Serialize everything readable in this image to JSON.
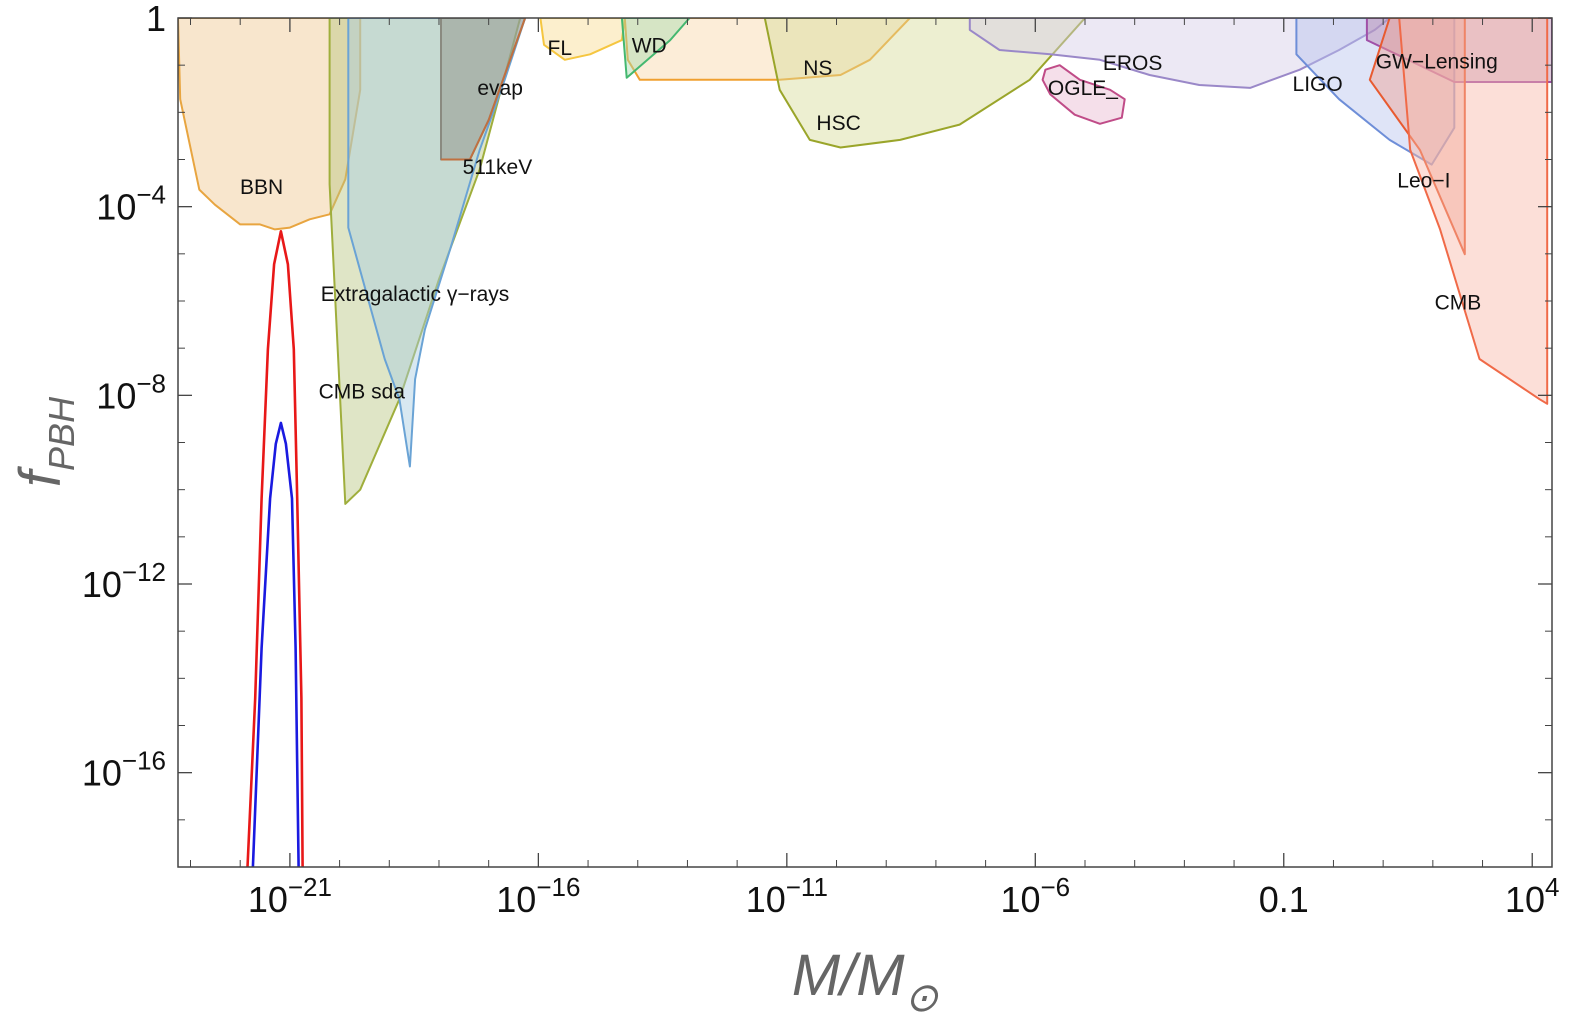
{
  "chart_data": {
    "type": "area",
    "xscale": "log",
    "yscale": "log",
    "x_label": "M/M⊙",
    "y_label": "fPBH",
    "xlim": [
      5.6e-24,
      25000.0
    ],
    "ylim": [
      1e-18,
      1
    ],
    "xticks": [
      {
        "value": 1e-21,
        "label": "10−21"
      },
      {
        "value": 1e-16,
        "label": "10−16"
      },
      {
        "value": 1e-11,
        "label": "10−11"
      },
      {
        "value": 1e-06,
        "label": "10−6"
      },
      0.1,
      {
        "value": 10000.0,
        "label": "104"
      }
    ],
    "xminor": [
      1e-23,
      1e-22,
      1e-20,
      1e-19,
      1e-18,
      1e-17,
      1e-15,
      1e-14,
      1e-13,
      1e-12,
      1e-10,
      1e-09,
      1e-08,
      1e-07,
      1e-05,
      0.0001,
      0.001,
      0.01,
      1,
      10,
      100,
      1000
    ],
    "yticks": [
      {
        "value": 1e-16,
        "label": "10−16"
      },
      {
        "value": 1e-12,
        "label": "10−12"
      },
      {
        "value": 1e-08,
        "label": "10−8"
      },
      {
        "value": 0.0001,
        "label": "10−4"
      },
      1
    ],
    "yminor": [
      1e-17,
      1e-15,
      1e-14,
      1e-13,
      1e-11,
      1e-10,
      1e-09,
      1e-07,
      1e-06,
      1e-05,
      0.001,
      0.01,
      0.1
    ],
    "series": [
      {
        "name": "BBN",
        "color": "#e8a540",
        "fill": "#f0c890",
        "x": [
          5.6e-24,
          6.2e-24,
          1.5e-23,
          3.1e-23,
          1e-22,
          2.5e-22,
          5e-22,
          1e-21,
          2.5e-21,
          6.3e-21,
          1.3e-20,
          2.6e-20,
          2.6e-20
        ],
        "y": [
          1,
          0.019,
          0.00023,
          0.00011,
          4.2e-05,
          4.2e-05,
          3.3e-05,
          3.6e-05,
          5.4e-05,
          6.9e-05,
          0.00038,
          0.03,
          1
        ],
        "label_at": [
          2.7e-22,
          0.00026
        ]
      },
      {
        "name": "CMB sda",
        "color": "#9fae3c",
        "fill": "#b8c680",
        "x": [
          6.3e-21,
          1.3e-20,
          2.6e-20,
          1.6e-19,
          1e-18,
          6.6e-18,
          4.3e-17,
          6.3e-21
        ],
        "y": [
          0.0003,
          5e-11,
          1e-10,
          8.3e-09,
          2.9e-06,
          0.00062,
          1,
          1
        ],
        "label_at": [
          2.8e-20,
          1.2e-08
        ]
      },
      {
        "name": "Extragalactic γ−rays",
        "color": "#6aa3d5",
        "fill": "#a8cde0",
        "x": [
          1.5e-20,
          8.1e-20,
          1.6e-19,
          2.6e-19,
          3.3e-19,
          5.2e-19,
          1.7e-18,
          6.6e-18,
          2.1e-17,
          5.4e-17,
          1.5e-20
        ],
        "y": [
          3.6e-05,
          5.9e-08,
          8.3e-09,
          3.1e-10,
          2.2e-08,
          2.5e-07,
          1.3e-05,
          0.0016,
          0.049,
          1,
          1
        ],
        "label_at": [
          3.3e-19,
          1.4e-06
        ]
      },
      {
        "name": "evap",
        "color": "#8a8a80",
        "fill": "#8a8a80",
        "x": [
          1.1e-18,
          1.1e-18,
          4.2e-18,
          1e-17,
          2.7e-17,
          5.4e-17
        ],
        "y": [
          1,
          0.001,
          0.001,
          0.0069,
          0.13,
          1
        ],
        "label_at": [
          1.7e-17,
          0.033
        ]
      },
      {
        "name": "511keV",
        "color": "#c07040",
        "fill": null,
        "x": [
          1.1e-18,
          4.2e-18,
          1e-17,
          2.7e-17,
          5.4e-17
        ],
        "y": [
          0.001,
          0.001,
          0.0069,
          0.13,
          1
        ],
        "label_at": [
          1.5e-17,
          0.0007
        ]
      },
      {
        "name": "FL",
        "color": "#f5c640",
        "fill": "#f8dc90",
        "x": [
          1.1e-16,
          1.3e-16,
          3.4e-16,
          1.1e-15,
          4.8e-15,
          5.5e-15
        ],
        "y": [
          1,
          0.27,
          0.13,
          0.17,
          0.34,
          1
        ],
        "label_at": [
          2.7e-16,
          0.23
        ]
      },
      {
        "name": "NS",
        "color": "#f0a030",
        "fill": "#f8d8a8",
        "x": [
          5.5e-15,
          6.3e-15,
          1.1e-14,
          7.2e-12,
          1.2e-10,
          4.7e-10,
          3e-09
        ],
        "y": [
          1,
          0.13,
          0.049,
          0.049,
          0.062,
          0.13,
          1
        ],
        "label_at": [
          4.2e-11,
          0.088
        ]
      },
      {
        "name": "WD",
        "color": "#44b870",
        "fill": "#a8dcb0",
        "x": [
          4.8e-15,
          6e-15,
          4.5e-14,
          1.1e-13
        ],
        "y": [
          1,
          0.054,
          0.34,
          1
        ],
        "label_at": [
          1.7e-14,
          0.26
        ]
      },
      {
        "name": "HSC",
        "color": "#9aa52a",
        "fill": "#d8dc98",
        "x": [
          3.6e-12,
          7.2e-12,
          2.9e-11,
          1.2e-10,
          1.9e-09,
          3e-08,
          7.7e-07,
          1e-05
        ],
        "y": [
          1,
          0.03,
          0.0026,
          0.0018,
          0.0026,
          0.0055,
          0.049,
          1
        ],
        "label_at": [
          1.1e-10,
          0.006
        ]
      },
      {
        "name": "EROS",
        "color": "#9a88c8",
        "fill": "#d4cce6",
        "x": [
          4.8e-08,
          1.9e-07,
          2e-06,
          2e-05,
          0.0002,
          0.002,
          0.021,
          0.21,
          1.3,
          6.8,
          13.5,
          4.8e-08
        ],
        "y": [
          0.56,
          0.21,
          0.17,
          0.13,
          0.062,
          0.038,
          0.033,
          0.08,
          0.21,
          0.56,
          1,
          1
        ],
        "label_at": [
          9.1e-05,
          0.11
        ]
      },
      {
        "name": "OGLE_",
        "color": "#c04c88",
        "fill": "#e8b8d0",
        "x": [
          1.6e-06,
          3.1e-06,
          7.9e-06,
          3.2e-05,
          6.3e-05,
          5.5e-05,
          2e-05,
          6.2e-06,
          2e-06,
          1.4e-06
        ],
        "y": [
          0.08,
          0.1,
          0.049,
          0.03,
          0.019,
          0.0077,
          0.0057,
          0.0089,
          0.024,
          0.049
        ],
        "label_at": [
          9.1e-06,
          0.033
        ]
      },
      {
        "name": "LIGO",
        "color": "#6e8ed8",
        "fill": "#b8c4ee",
        "x": [
          0.18,
          0.18,
          1.3,
          13.5,
          95,
          270,
          270
        ],
        "y": [
          1,
          0.17,
          0.019,
          0.0026,
          0.00078,
          0.0047,
          1
        ],
        "label_at": [
          0.48,
          0.04
        ]
      },
      {
        "name": "GW−Lensing",
        "color": "#a050a8",
        "fill": "#b888b0",
        "x": [
          4.7,
          4.7,
          270,
          25000.0,
          25000.0
        ],
        "y": [
          1,
          0.34,
          0.044,
          0.044,
          1
        ],
        "label_at": [
          120,
          0.12
        ]
      },
      {
        "name": "Leo−I",
        "color": "#e85a30",
        "fill": "#f0a090",
        "x": [
          5.4,
          55,
          440,
          440,
          13.5
        ],
        "y": [
          0.049,
          0.0016,
          9.8e-06,
          1,
          1
        ],
        "label_at": [
          66,
          0.00036
        ]
      },
      {
        "name": "CMB",
        "color": "#f06a48",
        "fill": "#f8b8a8",
        "x": [
          21,
          35,
          140,
          870,
          14000.0,
          20000.0,
          20000.0
        ],
        "y": [
          1,
          0.0016,
          3.3e-05,
          5.9e-08,
          8.3e-09,
          6.6e-09,
          1
        ],
        "label_at": [
          320,
          9.4e-07
        ]
      },
      {
        "color": "#e81818",
        "fill": null,
        "x": [
          1.4e-22,
          2e-22,
          2.7e-22,
          3.6e-22,
          4.8e-22,
          6.6e-22,
          9.1e-22,
          1.2e-21,
          1.4e-21,
          1.7e-21,
          1.8e-21
        ],
        "y": [
          1e-18,
          3.8e-15,
          6.5e-11,
          9.5e-08,
          6e-06,
          3e-05,
          6e-06,
          9.5e-08,
          6.5e-11,
          3.8e-15,
          1e-18
        ]
      },
      {
        "color": "#1a1ae0",
        "fill": null,
        "x": [
          1.8e-22,
          2.7e-22,
          4e-22,
          5.2e-22,
          6.6e-22,
          8.3e-22,
          1.1e-21,
          1.3e-21,
          1.5e-21
        ],
        "y": [
          1e-18,
          4.4e-14,
          6.5e-11,
          9.4e-10,
          2.6e-09,
          9.4e-10,
          6.5e-11,
          4.4e-14,
          1e-18
        ]
      }
    ]
  }
}
